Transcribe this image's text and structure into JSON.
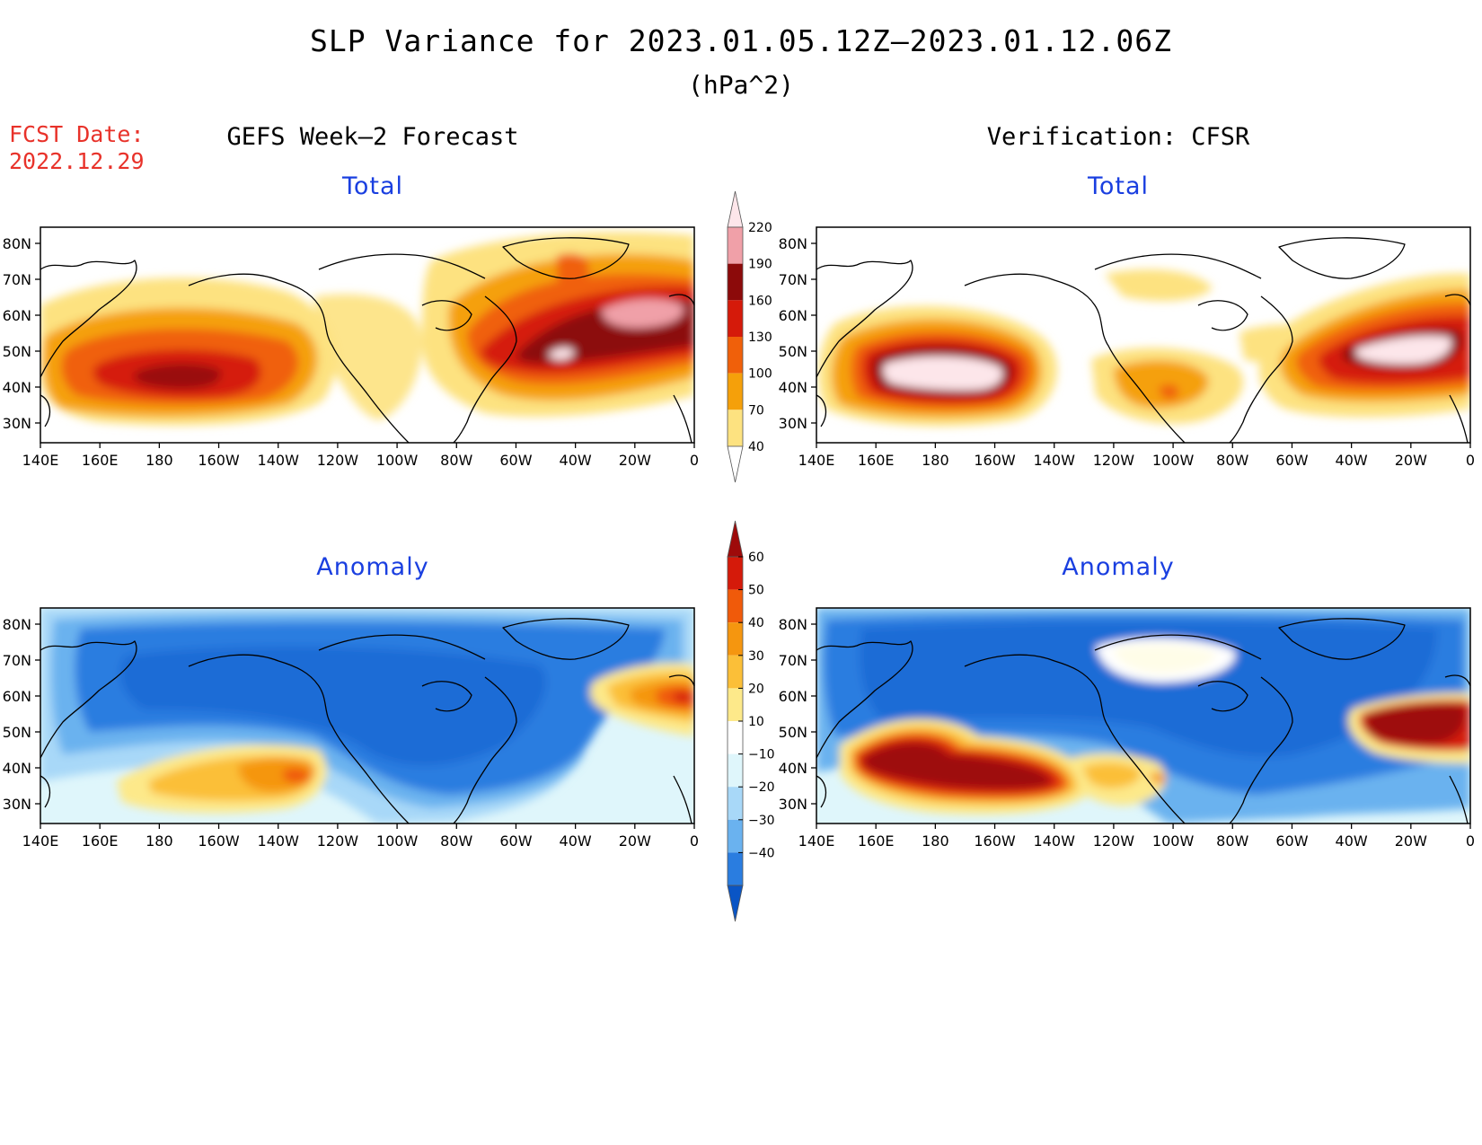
{
  "header": {
    "title": "SLP Variance for 2023.01.05.12Z—2023.01.12.06Z",
    "unit": "(hPa^2)",
    "fcst_date_label": "FCST Date:",
    "fcst_date_value": "2022.12.29"
  },
  "columns": {
    "left_title": "GEFS Week—2 Forecast",
    "right_title": "Verification: CFSR"
  },
  "panels": {
    "total_label": "Total",
    "anomaly_label": "Anomaly"
  },
  "axes": {
    "lat_labels": [
      "80N",
      "70N",
      "60N",
      "50N",
      "40N",
      "30N"
    ],
    "lon_labels": [
      "140E",
      "160E",
      "180",
      "160W",
      "140W",
      "120W",
      "100W",
      "80W",
      "60W",
      "40W",
      "20W",
      "0"
    ]
  },
  "colorbars": {
    "total": {
      "labels": [
        "220",
        "190",
        "160",
        "130",
        "100",
        "70",
        "40"
      ],
      "colors": [
        "#fde6ea",
        "#f0a0a8",
        "#8c0a0a",
        "#d51a0a",
        "#f0600a",
        "#f5a00a",
        "#fde280"
      ]
    },
    "anomaly": {
      "labels": [
        "60",
        "50",
        "40",
        "30",
        "20",
        "10",
        "−10",
        "−20",
        "−30",
        "−40"
      ],
      "colors": [
        "#9e0a0a",
        "#d51a0a",
        "#f05a0a",
        "#f5960f",
        "#fbbf38",
        "#fde98a",
        "#ffffff",
        "#dff6fb",
        "#a8d8f8",
        "#6ab2ef",
        "#2a7de0",
        "#0a55c5"
      ]
    }
  }
}
